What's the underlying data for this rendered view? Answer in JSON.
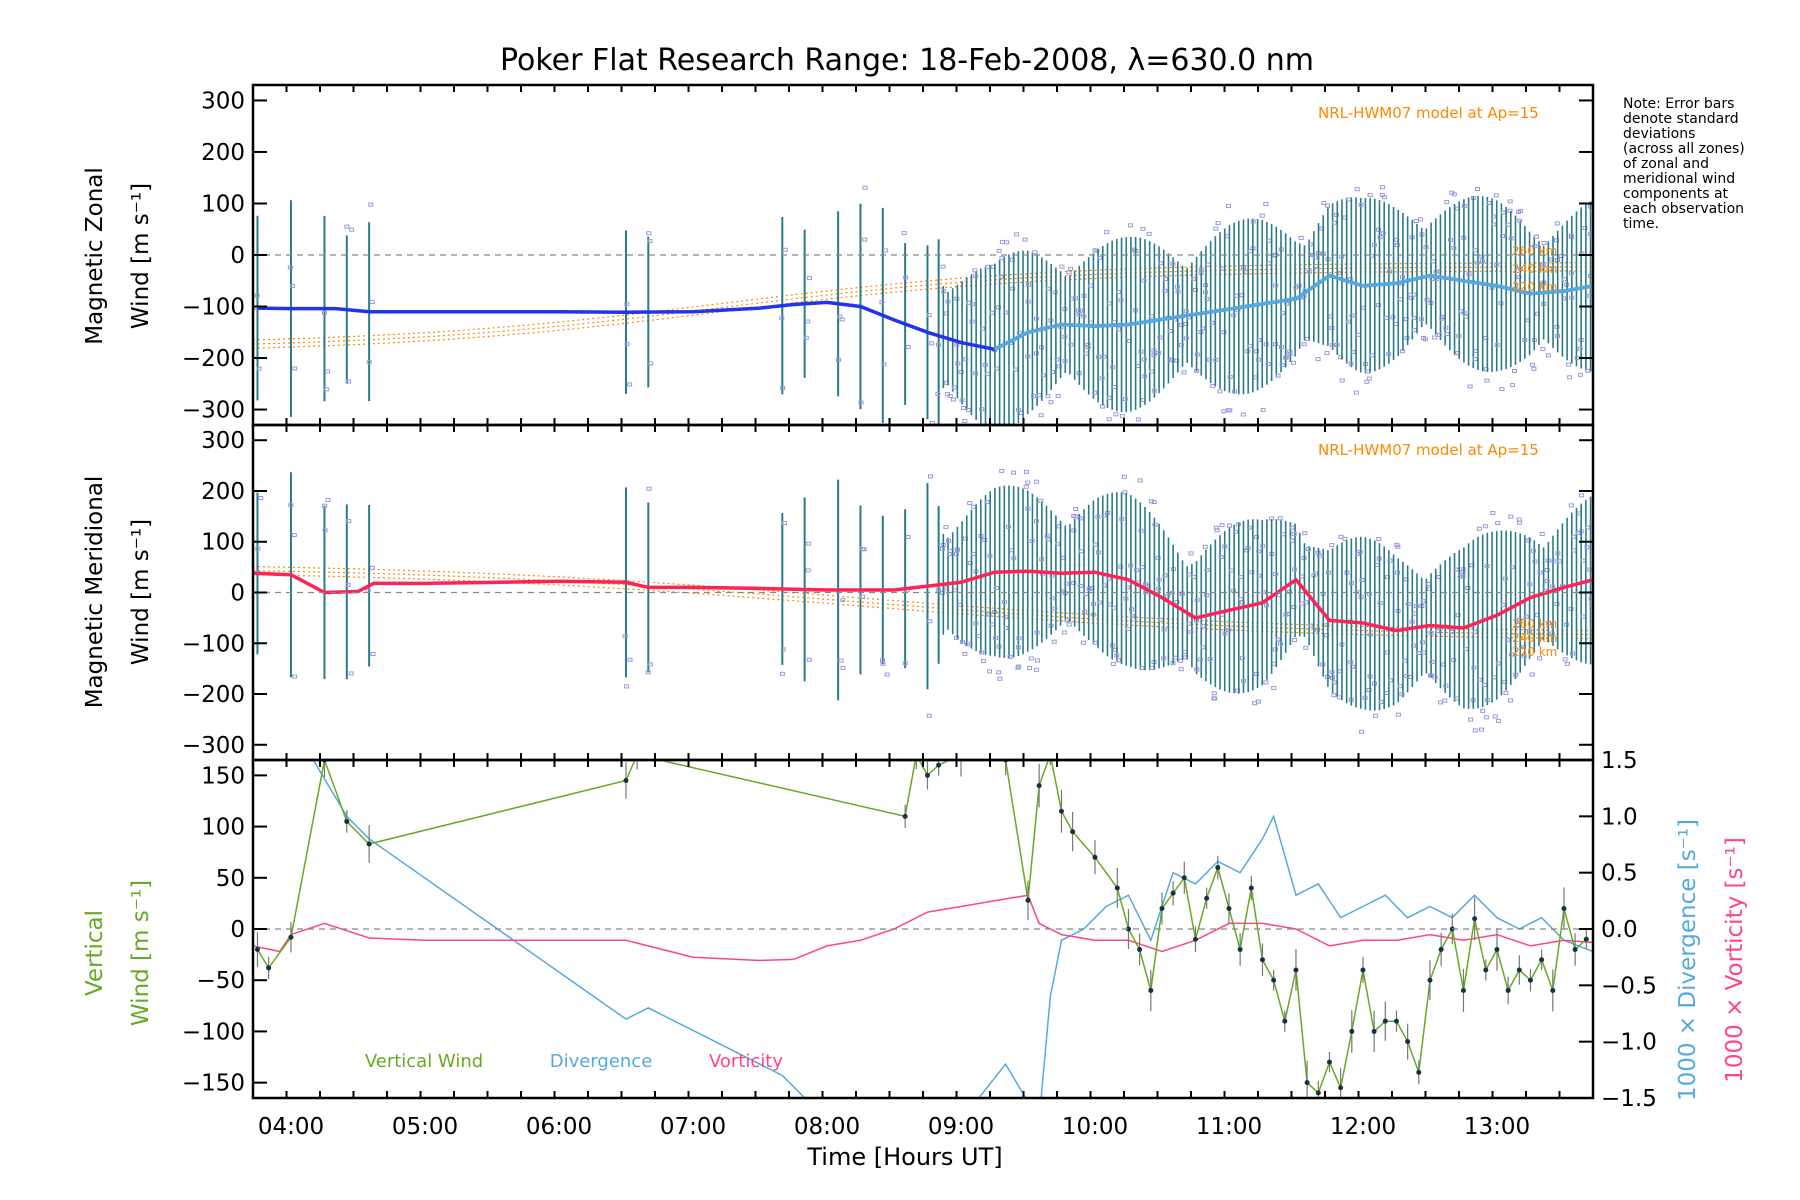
{
  "title": "Poker Flat Research Range: 18-Feb-2008, λ=630.0 nm",
  "note_lines": [
    "Note: Error bars",
    "denote standard",
    "deviations",
    "(across all zones)",
    "of zonal and",
    "meridional wind",
    "components at",
    "each observation",
    "time."
  ],
  "model_label": "NRL-HWM07 model at Ap=15",
  "colors": {
    "zonal": "#2233ee",
    "zonal_late": "#55aadd",
    "meridional": "#ff2255",
    "model": "#ff8800",
    "vertical": "#66aa22",
    "divergence": "#55aadd",
    "vorticity": "#ff4488",
    "error_bar": "#2a7a8a",
    "scatter": "#9999dd"
  },
  "chart_data": [
    {
      "type": "line",
      "title": "Poker Flat Research Range: 18-Feb-2008, λ=630.0 nm",
      "ylabel": "Magnetic Zonal",
      "ylabel2": "Wind [m s⁻¹]",
      "ylim": [
        -330,
        330
      ],
      "xlim": [
        "03:43",
        "13:43"
      ],
      "yticks": [
        "300",
        "200",
        "100",
        "0",
        "−100",
        "−200",
        "−300"
      ],
      "annotation": "NRL-HWM07 model at Ap=15",
      "model_height_labels": [
        "260 km",
        "240 km",
        "220 km"
      ],
      "series": [
        {
          "x": [
            "03:45",
            "04:00",
            "04:20",
            "04:35",
            "05:00",
            "06:00",
            "06:30",
            "07:00",
            "07:30",
            "07:45",
            "08:00",
            "08:15",
            "08:30",
            "08:45",
            "09:00",
            "09:15",
            "09:30",
            "09:45",
            "10:00",
            "10:15",
            "10:30",
            "10:45",
            "11:00",
            "11:15",
            "11:30",
            "11:45",
            "12:00",
            "12:15",
            "12:30",
            "12:45",
            "13:00",
            "13:15",
            "13:30",
            "13:43"
          ],
          "y": [
            -103,
            -104,
            -104,
            -110,
            -110,
            -110,
            -111,
            -110,
            -103,
            -96,
            -92,
            -100,
            -126,
            -150,
            -170,
            -183,
            -150,
            -135,
            -138,
            -135,
            -125,
            -115,
            -105,
            -95,
            -85,
            -40,
            -60,
            -55,
            -40,
            -50,
            -60,
            -75,
            -70,
            -60
          ]
        }
      ]
    },
    {
      "type": "line",
      "ylabel": "Magnetic Meridional",
      "ylabel2": "Wind [m s⁻¹]",
      "ylim": [
        -330,
        330
      ],
      "xlim": [
        "03:43",
        "13:43"
      ],
      "yticks": [
        "300",
        "200",
        "100",
        "0",
        "−100",
        "−200",
        "−300"
      ],
      "annotation": "NRL-HWM07 model at Ap=15",
      "model_height_labels": [
        "260 km",
        "240 km",
        "220 km"
      ],
      "series": [
        {
          "x": [
            "03:43",
            "04:00",
            "04:15",
            "04:30",
            "04:37",
            "05:00",
            "06:00",
            "06:30",
            "06:40",
            "07:00",
            "07:30",
            "08:00",
            "08:30",
            "09:00",
            "09:15",
            "09:30",
            "09:45",
            "10:00",
            "10:15",
            "10:30",
            "10:45",
            "11:00",
            "11:15",
            "11:30",
            "11:45",
            "12:00",
            "12:15",
            "12:30",
            "12:45",
            "13:00",
            "13:15",
            "13:30",
            "13:43"
          ],
          "y": [
            38,
            35,
            0,
            2,
            18,
            18,
            22,
            20,
            10,
            10,
            8,
            5,
            5,
            20,
            40,
            42,
            38,
            40,
            25,
            -10,
            -50,
            -35,
            -20,
            25,
            -55,
            -60,
            -75,
            -65,
            -70,
            -45,
            -10,
            10,
            25
          ]
        }
      ]
    },
    {
      "type": "line",
      "ylabel": "Vertical",
      "ylabel2": "Wind [m s⁻¹]",
      "right_ylabel": "1000 × Divergence [s⁻¹]",
      "right_ylabel2": "1000 × Vorticity [s⁻¹]",
      "xlabel": "Time [Hours UT]",
      "ylim": [
        -165,
        165
      ],
      "y2lim": [
        -1.5,
        1.5
      ],
      "xlim": [
        "03:43",
        "13:43"
      ],
      "yticks": [
        "150",
        "100",
        "50",
        "0",
        "−50",
        "−100",
        "−150"
      ],
      "y2ticks": [
        "1.5",
        "1.0",
        "0.5",
        "0.0",
        "−0.5",
        "−1.0",
        "−1.5"
      ],
      "xticks": [
        "04:00",
        "05:00",
        "06:00",
        "07:00",
        "08:00",
        "09:00",
        "10:00",
        "11:00",
        "12:00",
        "13:00"
      ],
      "legend": [
        "Vertical Wind",
        "Divergence",
        "Vorticity"
      ],
      "series": [
        {
          "name": "Vertical Wind",
          "axis": "left",
          "x": [
            "03:45",
            "03:50",
            "04:00",
            "04:15",
            "04:25",
            "04:35",
            "06:30",
            "06:35",
            "08:35",
            "08:40",
            "08:45",
            "08:50",
            "09:00",
            "09:20",
            "09:30",
            "09:35",
            "09:40",
            "09:45",
            "09:50",
            "10:00",
            "10:10",
            "10:15",
            "10:20",
            "10:25",
            "10:30",
            "10:35",
            "10:40",
            "10:45",
            "10:50",
            "10:55",
            "11:00",
            "11:05",
            "11:10",
            "11:15",
            "11:20",
            "11:25",
            "11:30",
            "11:35",
            "11:40",
            "11:45",
            "11:50",
            "11:55",
            "12:00",
            "12:05",
            "12:10",
            "12:15",
            "12:20",
            "12:25",
            "12:30",
            "12:35",
            "12:40",
            "12:45",
            "12:50",
            "12:55",
            "13:00",
            "13:05",
            "13:10",
            "13:15",
            "13:20",
            "13:25",
            "13:30",
            "13:35",
            "13:40"
          ],
          "y": [
            -20,
            -38,
            -8,
            165,
            105,
            83,
            145,
            170,
            110,
            170,
            150,
            160,
            170,
            165,
            28,
            140,
            170,
            115,
            95,
            70,
            40,
            0,
            -20,
            -60,
            20,
            35,
            50,
            -10,
            30,
            60,
            20,
            -20,
            40,
            -30,
            -50,
            -90,
            -40,
            -150,
            -160,
            -130,
            -155,
            -100,
            -40,
            -100,
            -90,
            -90,
            -110,
            -140,
            -50,
            -20,
            0,
            -60,
            10,
            -40,
            -20,
            -60,
            -40,
            -50,
            -30,
            -60,
            20,
            -20,
            -10
          ]
        },
        {
          "name": "Divergence",
          "axis": "right",
          "x": [
            "03:43",
            "04:00",
            "04:10",
            "04:25",
            "04:35",
            "06:30",
            "06:40",
            "07:30",
            "07:40",
            "08:00",
            "08:40",
            "09:00",
            "09:20",
            "09:35",
            "09:40",
            "09:45",
            "09:55",
            "10:05",
            "10:15",
            "10:25",
            "10:35",
            "10:45",
            "10:55",
            "11:05",
            "11:15",
            "11:20",
            "11:30",
            "11:40",
            "11:50",
            "12:00",
            "12:10",
            "12:20",
            "12:30",
            "12:40",
            "12:50",
            "13:00",
            "13:10",
            "13:20",
            "13:30",
            "13:43"
          ],
          "y": [
            1.5,
            1.5,
            1.5,
            1.0,
            0.8,
            -0.8,
            -0.7,
            -1.2,
            -1.3,
            -1.7,
            -1.6,
            -1.7,
            -1.2,
            -1.7,
            -0.6,
            -0.1,
            0.0,
            0.2,
            0.3,
            -0.1,
            0.5,
            0.4,
            0.6,
            0.5,
            0.8,
            1.0,
            0.3,
            0.4,
            0.1,
            0.2,
            0.3,
            0.1,
            0.2,
            0.1,
            0.3,
            0.1,
            0.0,
            0.1,
            -0.1,
            -0.2
          ]
        },
        {
          "name": "Vorticity",
          "axis": "right",
          "x": [
            "03:43",
            "03:55",
            "04:00",
            "04:15",
            "04:35",
            "05:00",
            "06:30",
            "07:00",
            "07:30",
            "07:45",
            "08:00",
            "08:15",
            "08:30",
            "08:45",
            "09:00",
            "09:15",
            "09:30",
            "09:35",
            "09:45",
            "10:00",
            "10:15",
            "10:30",
            "10:45",
            "11:00",
            "11:15",
            "11:30",
            "11:45",
            "12:00",
            "12:15",
            "12:30",
            "12:45",
            "13:00",
            "13:15",
            "13:30",
            "13:43"
          ],
          "y": [
            -0.15,
            -0.2,
            -0.05,
            0.05,
            -0.08,
            -0.1,
            -0.1,
            -0.25,
            -0.28,
            -0.27,
            -0.15,
            -0.1,
            0.0,
            0.15,
            0.2,
            0.25,
            0.3,
            0.05,
            -0.05,
            -0.1,
            -0.1,
            -0.2,
            -0.1,
            0.05,
            0.05,
            0.0,
            -0.15,
            -0.1,
            -0.1,
            -0.05,
            -0.1,
            -0.05,
            -0.15,
            -0.1,
            -0.12
          ]
        }
      ]
    }
  ]
}
